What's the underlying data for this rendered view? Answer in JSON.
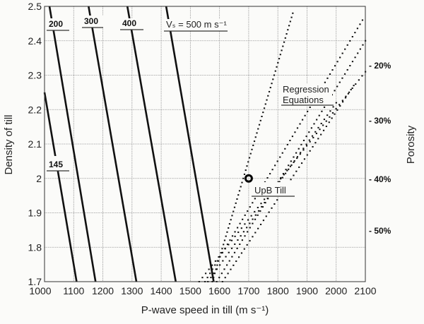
{
  "chart_data": {
    "type": "line",
    "xlabel": "P-wave speed in till (m s⁻¹)",
    "ylabel": "Density of till",
    "y2label": "Porosity",
    "xlim": [
      1000,
      2100
    ],
    "ylim": [
      1.7,
      2.5
    ],
    "xticks": [
      "1000",
      "1100",
      "1200",
      "1300",
      "1400",
      "1500",
      "1600",
      "1700",
      "1800",
      "1900",
      "2000",
      "2100"
    ],
    "yticks": [
      "1.7",
      "1.8",
      "1.9",
      "2",
      "2.1",
      "2.2",
      "2.3",
      "2.4",
      "2.5"
    ],
    "porosity_ticks": [
      {
        "label": "- 20%",
        "density": 2.33
      },
      {
        "label": "- 30%",
        "density": 2.17
      },
      {
        "label": "- 40%",
        "density": 2.0
      },
      {
        "label": "- 50%",
        "density": 1.85
      }
    ],
    "grid": true,
    "vs_lines": [
      {
        "label": "145",
        "points": [
          [
            1000,
            2.25
          ],
          [
            1110,
            1.7
          ]
        ]
      },
      {
        "label": "200",
        "points": [
          [
            1017,
            2.5
          ],
          [
            1175,
            1.7
          ]
        ]
      },
      {
        "label": "300",
        "points": [
          [
            1151,
            2.5
          ],
          [
            1315,
            1.7
          ]
        ]
      },
      {
        "label": "400",
        "points": [
          [
            1284,
            2.5
          ],
          [
            1450,
            1.7
          ]
        ]
      },
      {
        "label": "Vₛ = 500 m s⁻¹",
        "points": [
          [
            1417,
            2.5
          ],
          [
            1580,
            1.7
          ]
        ]
      }
    ],
    "regression_label": [
      "Regression",
      "Equations"
    ],
    "regression_lines": [
      [
        [
          1575,
          1.7
        ],
        [
          1851,
          2.48
        ]
      ],
      [
        [
          1550,
          1.7
        ],
        [
          2090,
          2.46
        ]
      ],
      [
        [
          1590,
          1.7
        ],
        [
          2100,
          2.4
        ]
      ],
      [
        [
          1530,
          1.7
        ],
        [
          2100,
          2.31
        ]
      ],
      [
        [
          1610,
          1.7
        ],
        [
          2060,
          2.27
        ]
      ],
      [
        [
          1560,
          1.7
        ],
        [
          2000,
          2.22
        ]
      ]
    ],
    "point": {
      "label": "UpB Till",
      "x": 1700,
      "y": 2.0
    },
    "colors": {
      "line": "#111111",
      "grid": "#9a9a9a",
      "background": "#fbfbf9"
    }
  }
}
